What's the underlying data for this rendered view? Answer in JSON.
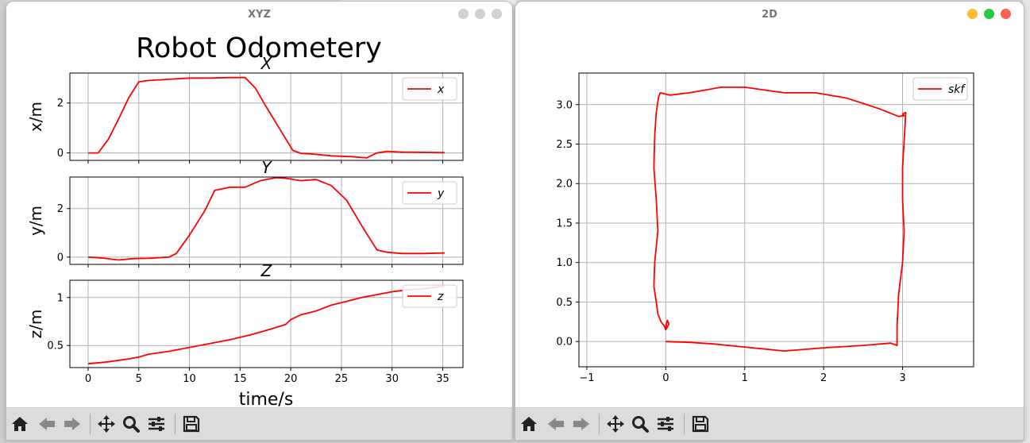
{
  "windows": {
    "xyz": {
      "title": "XYZ",
      "figure_title": "Robot Odometery",
      "xlabel": "time/s"
    },
    "plot2d": {
      "title": "2D"
    }
  },
  "toolbar": {
    "icons": [
      "home-icon",
      "back-icon",
      "forward-icon",
      "pan-icon",
      "zoom-icon",
      "configure-subplots-icon",
      "save-icon"
    ]
  },
  "colors": {
    "line": "#ff0000",
    "grid": "#b0b0b0",
    "close": "#fe5f57",
    "minimize": "#febc2e",
    "maximize": "#28c840",
    "inactive_light": "#d0d0d0"
  },
  "chart_data": [
    {
      "type": "line",
      "title": "X",
      "ylabel": "x/m",
      "xlim": [
        -1.8,
        37
      ],
      "ylim": [
        -0.3,
        3.2
      ],
      "xticks": [
        0,
        5,
        10,
        15,
        20,
        25,
        30,
        35
      ],
      "yticks": [
        0,
        2
      ],
      "grid": true,
      "legend_position": "top-right",
      "series": [
        {
          "name": "x",
          "x": [
            0,
            1,
            2,
            3,
            4,
            5,
            6,
            8,
            10,
            12,
            14,
            15.5,
            16.5,
            17.5,
            19,
            20.2,
            21,
            22,
            24,
            26,
            27.5,
            28.5,
            29.5,
            31,
            33,
            35.2
          ],
          "y": [
            0,
            0,
            0.55,
            1.35,
            2.2,
            2.85,
            2.9,
            2.95,
            3.0,
            3.0,
            3.02,
            3.02,
            2.6,
            1.9,
            0.9,
            0.1,
            -0.02,
            -0.04,
            -0.12,
            -0.15,
            -0.2,
            0.0,
            0.06,
            0.03,
            0.02,
            0.01
          ]
        }
      ]
    },
    {
      "type": "line",
      "title": "Y",
      "ylabel": "y/m",
      "xlim": [
        -1.8,
        37
      ],
      "ylim": [
        -0.3,
        3.3
      ],
      "xticks": [
        0,
        5,
        10,
        15,
        20,
        25,
        30,
        35
      ],
      "yticks": [
        0,
        2
      ],
      "grid": true,
      "legend_position": "top-right",
      "series": [
        {
          "name": "y",
          "x": [
            0,
            1.5,
            3,
            4.5,
            6,
            8,
            8.7,
            10,
            11.5,
            12.5,
            14,
            15.5,
            17,
            18.5,
            19.5,
            21,
            22.5,
            24,
            25.5,
            27,
            28.5,
            29.5,
            31,
            33,
            35.2
          ],
          "y": [
            0,
            -0.04,
            -0.12,
            -0.06,
            -0.05,
            0.0,
            0.15,
            0.9,
            1.9,
            2.75,
            2.88,
            2.88,
            3.15,
            3.27,
            3.25,
            3.15,
            3.2,
            2.95,
            2.35,
            1.3,
            0.3,
            0.2,
            0.15,
            0.15,
            0.17
          ]
        }
      ]
    },
    {
      "type": "line",
      "title": "Z",
      "ylabel": "z/m",
      "xlim": [
        -1.8,
        37
      ],
      "ylim": [
        0.27,
        1.18
      ],
      "xticks": [
        0,
        5,
        10,
        15,
        20,
        25,
        30,
        35
      ],
      "xticklabels": [
        "0",
        "5",
        "10",
        "15",
        "20",
        "25",
        "30",
        "35"
      ],
      "yticks": [
        0.5,
        1.0
      ],
      "grid": true,
      "legend_position": "top-right",
      "series": [
        {
          "name": "z",
          "x": [
            0,
            2,
            4,
            5,
            6,
            8,
            10,
            12,
            14,
            16,
            18,
            19.5,
            20,
            21,
            22.5,
            24,
            25.5,
            27,
            28.5,
            30,
            31.5,
            33,
            35.2
          ],
          "y": [
            0.31,
            0.33,
            0.36,
            0.38,
            0.41,
            0.44,
            0.48,
            0.52,
            0.56,
            0.61,
            0.67,
            0.72,
            0.77,
            0.82,
            0.86,
            0.92,
            0.96,
            1.0,
            1.03,
            1.06,
            1.08,
            1.09,
            1.12
          ]
        }
      ]
    },
    {
      "type": "line",
      "xlim": [
        -1.1,
        3.9
      ],
      "ylim": [
        -0.32,
        3.4
      ],
      "xticks": [
        -1,
        0,
        1,
        2,
        3
      ],
      "yticks": [
        0.0,
        0.5,
        1.0,
        1.5,
        2.0,
        2.5,
        3.0
      ],
      "xticklabels": [
        "−1",
        "0",
        "1",
        "2",
        "3"
      ],
      "yticklabels": [
        "0.0",
        "0.5",
        "1.0",
        "1.5",
        "2.0",
        "2.5",
        "3.0"
      ],
      "grid": true,
      "legend_position": "top-right",
      "series": [
        {
          "name": "skf",
          "x": [
            0.0,
            0.3,
            0.6,
            1.0,
            1.5,
            2.0,
            2.5,
            2.85,
            2.93,
            2.93,
            2.95,
            3.0,
            3.02,
            3.0,
            3.0,
            3.03,
            3.04,
            3.0,
            3.02,
            2.95,
            2.7,
            2.3,
            1.9,
            1.5,
            1.0,
            0.7,
            0.3,
            0.05,
            -0.07,
            -0.09,
            -0.12,
            -0.14,
            -0.15,
            -0.12,
            -0.1,
            -0.14,
            -0.15,
            -0.12,
            -0.1,
            -0.06,
            -0.02,
            0.0,
            0.04,
            0.02,
            0.0
          ],
          "y": [
            0.0,
            -0.01,
            -0.03,
            -0.07,
            -0.12,
            -0.08,
            -0.05,
            -0.02,
            -0.05,
            0.2,
            0.6,
            1.0,
            1.4,
            1.8,
            2.2,
            2.7,
            2.9,
            2.88,
            2.86,
            2.85,
            2.95,
            3.08,
            3.15,
            3.15,
            3.22,
            3.22,
            3.15,
            3.12,
            3.15,
            3.1,
            2.9,
            2.6,
            2.2,
            1.8,
            1.4,
            1.0,
            0.7,
            0.5,
            0.35,
            0.25,
            0.2,
            0.15,
            0.22,
            0.27,
            0.17
          ]
        }
      ]
    }
  ]
}
